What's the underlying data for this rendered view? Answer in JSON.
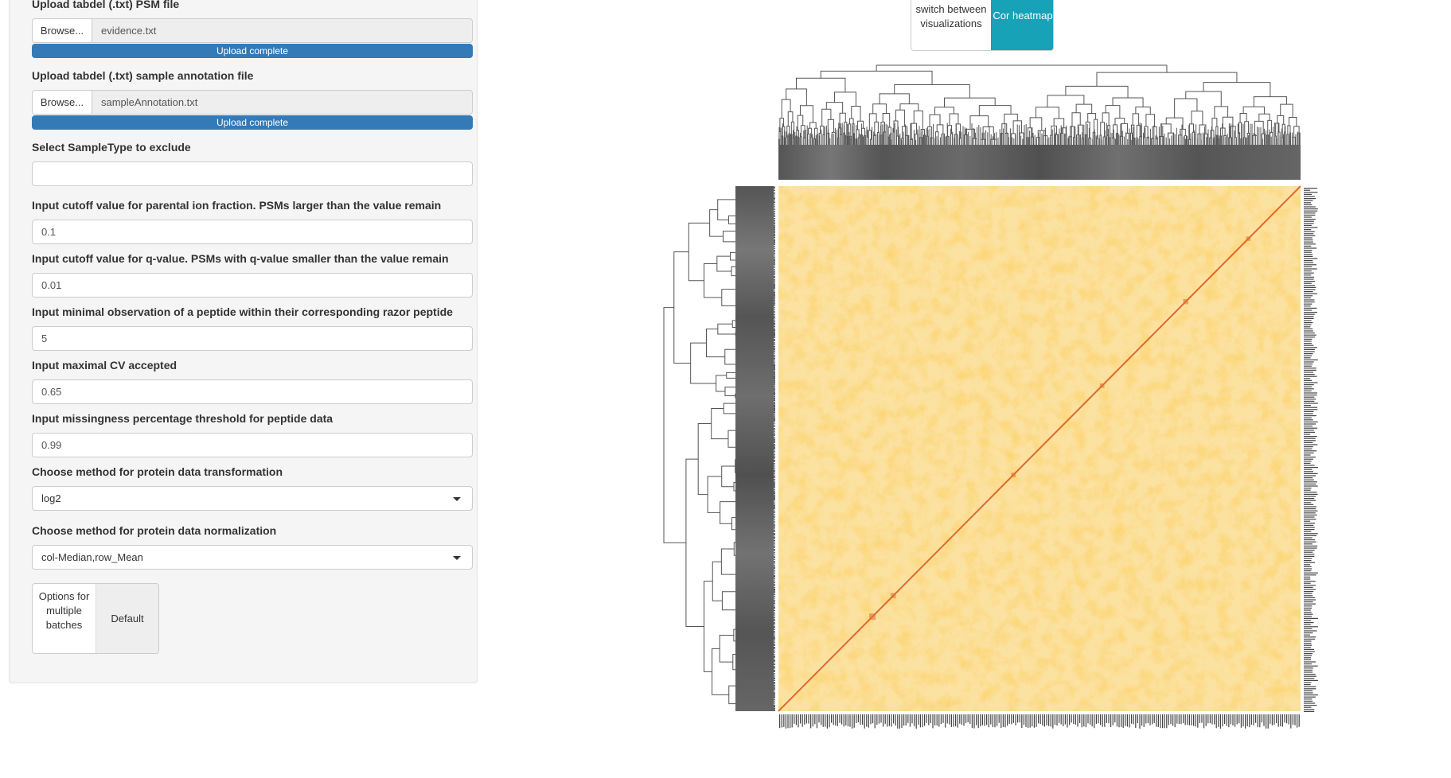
{
  "sidebar": {
    "psm_upload": {
      "label": "Upload tabdel (.txt) PSM file",
      "browse_label": "Browse...",
      "file_name": "evidence.txt",
      "progress_text": "Upload complete",
      "progress": 1.0
    },
    "annotation_upload": {
      "label": "Upload tabdel (.txt) sample annotation file",
      "browse_label": "Browse...",
      "file_name": "sampleAnnotation.txt",
      "progress_text": "Upload complete",
      "progress": 1.0
    },
    "sample_type": {
      "label": "Select SampleType to exclude",
      "value": ""
    },
    "parental_ion": {
      "label": "Input cutoff value for parental ion fraction. PSMs larger than the value remain",
      "value": "0.1"
    },
    "qvalue": {
      "label": "Input cutoff value for q-value. PSMs with q-value smaller than the value remain",
      "value": "0.01"
    },
    "min_obs": {
      "label": "Input minimal observation of a peptide within their corresponding razor peptide",
      "value": "5"
    },
    "max_cv": {
      "label": "Input maximal CV accepted",
      "value": "0.65"
    },
    "missingness": {
      "label": "Input missingness percentage threshold for peptide data",
      "value": "0.99"
    },
    "transform": {
      "label": "Choose method for protein data transformation",
      "value": "log2"
    },
    "normalization": {
      "label": "Choose method for protein data normalization",
      "value": "col-Median,row_Mean"
    },
    "batches": {
      "option_label": "Options for multiple batches",
      "default_label": "Default"
    }
  },
  "main": {
    "viz_toggle": {
      "switch_label": "switch between visualizations",
      "active_label": "Cor heatmap"
    },
    "heatmap": {
      "type": "clustered correlation heatmap",
      "accent_color": "#17a2b8",
      "low_color": "#fdf0c8",
      "mid_color": "#f7b944",
      "high_color": "#d9541e",
      "dendrogram_color": "#555555"
    }
  }
}
